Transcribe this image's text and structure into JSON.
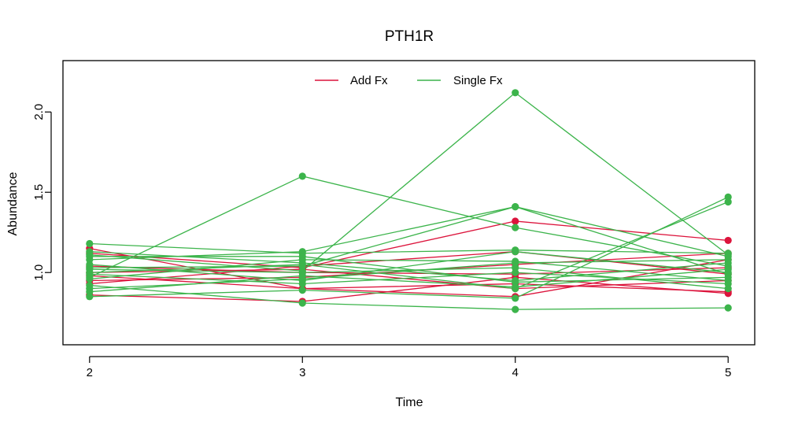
{
  "chart_data": {
    "type": "line",
    "title": "PTH1R",
    "xlabel": "Time",
    "ylabel": "Abundance",
    "x": [
      2,
      3,
      4,
      5
    ],
    "x_ticks": [
      "2",
      "3",
      "4",
      "5"
    ],
    "y_ticks": [
      "1.0",
      "1.5",
      "2.0"
    ],
    "xlim": [
      1.875,
      5.125
    ],
    "ylim": [
      0.55,
      2.32
    ],
    "grid": false,
    "legend_position": "top-center",
    "colors": {
      "Add Fx": "#dc143c",
      "Single Fx": "#3cb44b"
    },
    "legend": [
      "Add Fx",
      "Single Fx"
    ],
    "series": [
      {
        "group": "Add Fx",
        "values": [
          1.15,
          0.9,
          0.85,
          1.08
        ]
      },
      {
        "group": "Add Fx",
        "values": [
          1.12,
          1.03,
          1.32,
          1.2
        ]
      },
      {
        "group": "Add Fx",
        "values": [
          0.86,
          0.82,
          0.97,
          0.87
        ]
      },
      {
        "group": "Add Fx",
        "values": [
          0.95,
          0.97,
          1.05,
          1.12
        ]
      },
      {
        "group": "Add Fx",
        "values": [
          0.98,
          0.9,
          0.93,
          0.88
        ]
      },
      {
        "group": "Add Fx",
        "values": [
          1.0,
          1.02,
          0.9,
          0.95
        ]
      },
      {
        "group": "Add Fx",
        "values": [
          0.93,
          1.04,
          1.13,
          0.99
        ]
      },
      {
        "group": "Add Fx",
        "values": [
          1.04,
          1.0,
          0.99,
          1.03
        ]
      },
      {
        "group": "Single Fx",
        "values": [
          1.18,
          1.12,
          1.14,
          1.12
        ]
      },
      {
        "group": "Single Fx",
        "values": [
          1.11,
          1.01,
          2.12,
          1.11
        ]
      },
      {
        "group": "Single Fx",
        "values": [
          0.97,
          1.6,
          1.28,
          1.04
        ]
      },
      {
        "group": "Single Fx",
        "values": [
          1.08,
          1.13,
          1.41,
          0.99
        ]
      },
      {
        "group": "Single Fx",
        "values": [
          1.03,
          1.04,
          1.41,
          1.1
        ]
      },
      {
        "group": "Single Fx",
        "values": [
          0.92,
          0.81,
          0.77,
          0.78
        ]
      },
      {
        "group": "Single Fx",
        "values": [
          0.85,
          0.89,
          0.84,
          1.47
        ]
      },
      {
        "group": "Single Fx",
        "values": [
          1.0,
          1.05,
          0.9,
          1.44
        ]
      },
      {
        "group": "Single Fx",
        "values": [
          1.02,
          1.0,
          1.03,
          0.9
        ]
      },
      {
        "group": "Single Fx",
        "values": [
          0.96,
          1.08,
          1.07,
          0.95
        ]
      },
      {
        "group": "Single Fx",
        "values": [
          1.05,
          0.95,
          1.13,
          1.0
        ]
      },
      {
        "group": "Single Fx",
        "values": [
          0.88,
          0.98,
          0.91,
          1.02
        ]
      },
      {
        "group": "Single Fx",
        "values": [
          1.13,
          1.06,
          0.95,
          1.06
        ]
      },
      {
        "group": "Single Fx",
        "values": [
          0.99,
          0.93,
          1.0,
          0.93
        ]
      },
      {
        "group": "Single Fx",
        "values": [
          1.1,
          1.1,
          0.94,
          0.97
        ]
      },
      {
        "group": "Single Fx",
        "values": [
          0.9,
          0.96,
          1.06,
          1.08
        ]
      }
    ]
  }
}
